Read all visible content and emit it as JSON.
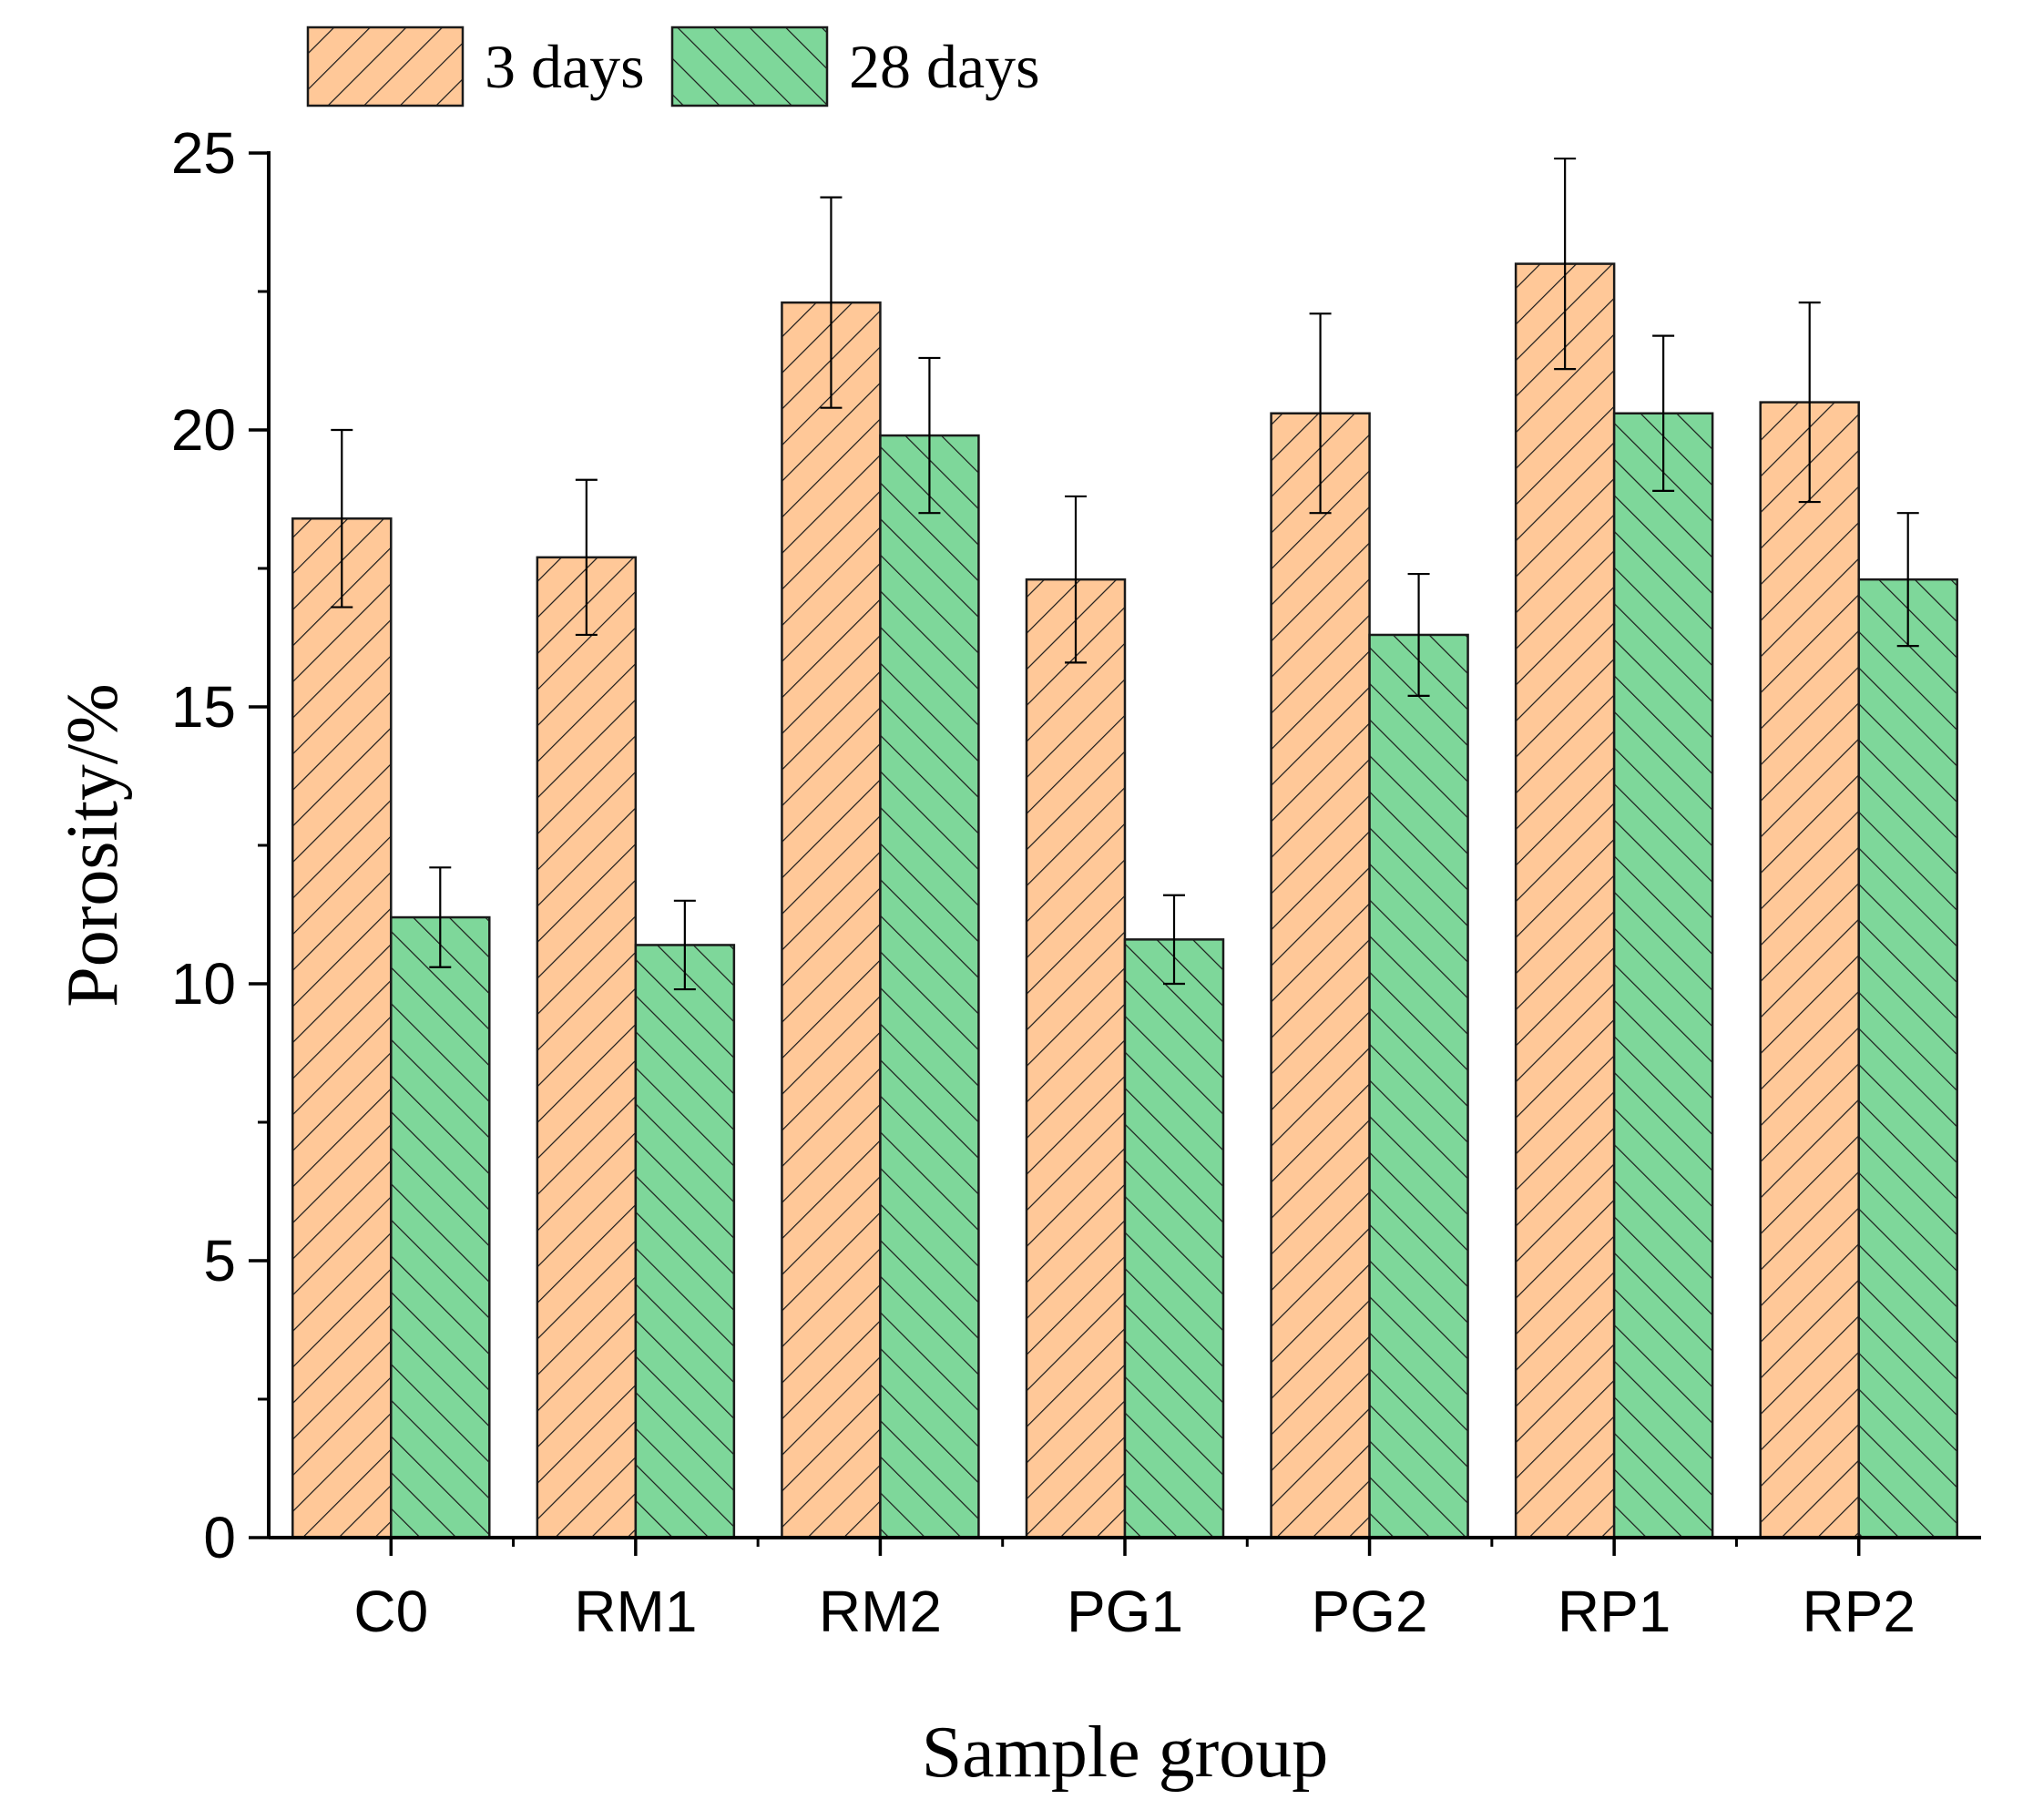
{
  "chart_data": {
    "type": "bar",
    "title": "",
    "xlabel": "Sample group",
    "ylabel": "Porosity/%",
    "ylim": [
      0,
      25
    ],
    "yticks": [
      0,
      5,
      10,
      15,
      20,
      25
    ],
    "categories": [
      "C0",
      "RM1",
      "RM2",
      "PG1",
      "PG2",
      "RP1",
      "RP2"
    ],
    "series": [
      {
        "name": "3 days",
        "values": [
          18.4,
          17.7,
          22.3,
          17.3,
          20.3,
          23.0,
          20.5
        ],
        "errors": [
          1.6,
          1.4,
          1.9,
          1.5,
          1.8,
          1.9,
          1.8
        ],
        "color": "#FFC898",
        "pattern": "forward-hatch"
      },
      {
        "name": "28 days",
        "values": [
          11.2,
          10.7,
          19.9,
          10.8,
          16.3,
          20.3,
          17.3
        ],
        "errors": [
          0.9,
          0.8,
          1.4,
          0.8,
          1.1,
          1.4,
          1.2
        ],
        "color": "#7ED79A",
        "pattern": "back-hatch"
      }
    ],
    "legend": {
      "position": "top-left",
      "orientation": "horizontal"
    },
    "grid": false
  }
}
